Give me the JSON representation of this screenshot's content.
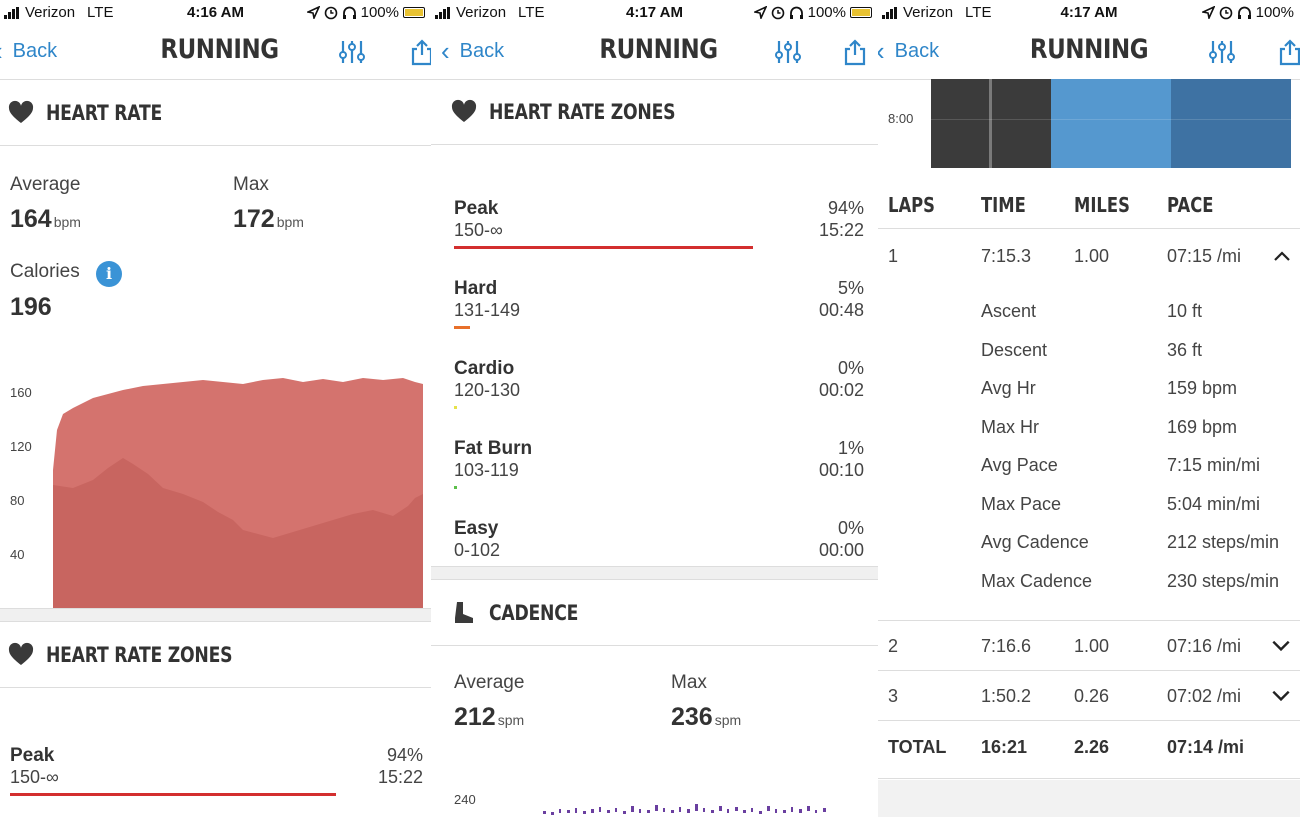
{
  "colors": {
    "accent": "#2f86c9",
    "peak": "#d32f2f",
    "hard": "#e8702a",
    "cardio": "#e6e24a",
    "fatburn": "#5cbf4a",
    "hr_chart_upper": "#d4736e",
    "hr_chart_lower": "#c86560",
    "cadence": "#6a3fa0"
  },
  "screens": [
    {
      "status": {
        "carrier": "Verizon",
        "network": "LTE",
        "time": "4:16 AM",
        "battery": "100%"
      },
      "nav": {
        "back_label": "Back",
        "title": "RUNNING"
      },
      "heart_rate": {
        "title": "HEART RATE",
        "average_label": "Average",
        "average_value": "164",
        "average_unit": "bpm",
        "max_label": "Max",
        "max_value": "172",
        "max_unit": "bpm",
        "calories_label": "Calories",
        "calories_value": "196",
        "info_glyph": "i",
        "chart_ticks": [
          "160",
          "120",
          "80",
          "40"
        ]
      },
      "zones_title": "HEART RATE ZONES",
      "peak": {
        "name": "Peak",
        "range": "150-∞",
        "percent": "94%",
        "time": "15:22"
      }
    },
    {
      "status": {
        "carrier": "Verizon",
        "network": "LTE",
        "time": "4:17 AM",
        "battery": "100%"
      },
      "nav": {
        "back_label": "Back",
        "title": "RUNNING"
      },
      "zones_title": "HEART RATE ZONES",
      "zones": [
        {
          "name": "Peak",
          "range": "150-∞",
          "percent": "94%",
          "time": "15:22",
          "share": 0.94
        },
        {
          "name": "Hard",
          "range": "131-149",
          "percent": "5%",
          "time": "00:48",
          "share": 0.05
        },
        {
          "name": "Cardio",
          "range": "120-130",
          "percent": "0%",
          "time": "00:02",
          "share": 0.006
        },
        {
          "name": "Fat Burn",
          "range": "103-119",
          "percent": "1%",
          "time": "00:10",
          "share": 0.01
        },
        {
          "name": "Easy",
          "range": "0-102",
          "percent": "0%",
          "time": "00:00",
          "share": 0
        }
      ],
      "cadence": {
        "title": "CADENCE",
        "average_label": "Average",
        "average_value": "212",
        "average_unit": "spm",
        "max_label": "Max",
        "max_value": "236",
        "max_unit": "spm",
        "chart_tick": "240"
      }
    },
    {
      "status": {
        "carrier": "Verizon",
        "network": "LTE",
        "time": "4:17 AM",
        "battery": "100%"
      },
      "nav": {
        "back_label": "Back",
        "title": "RUNNING"
      },
      "chart_tick": "8:00",
      "laps_header": {
        "laps": "LAPS",
        "time": "TIME",
        "miles": "MILES",
        "pace": "PACE"
      },
      "laps": [
        {
          "lap": "1",
          "time": "7:15.3",
          "miles": "1.00",
          "pace": "07:15 /mi"
        },
        {
          "lap": "2",
          "time": "7:16.6",
          "miles": "1.00",
          "pace": "07:16 /mi"
        },
        {
          "lap": "3",
          "time": "1:50.2",
          "miles": "0.26",
          "pace": "07:02 /mi"
        }
      ],
      "lap1_details": [
        {
          "label": "Ascent",
          "value": "10 ft"
        },
        {
          "label": "Descent",
          "value": "36 ft"
        },
        {
          "label": "Avg Hr",
          "value": "159 bpm"
        },
        {
          "label": "Max Hr",
          "value": "169 bpm"
        },
        {
          "label": "Avg Pace",
          "value": "7:15 min/mi"
        },
        {
          "label": "Max Pace",
          "value": "5:04 min/mi"
        },
        {
          "label": "Avg Cadence",
          "value": "212 steps/min"
        },
        {
          "label": "Max Cadence",
          "value": "230 steps/min"
        }
      ],
      "total": {
        "label": "TOTAL",
        "time": "16:21",
        "miles": "2.26",
        "pace": "07:14 /mi"
      }
    }
  ]
}
